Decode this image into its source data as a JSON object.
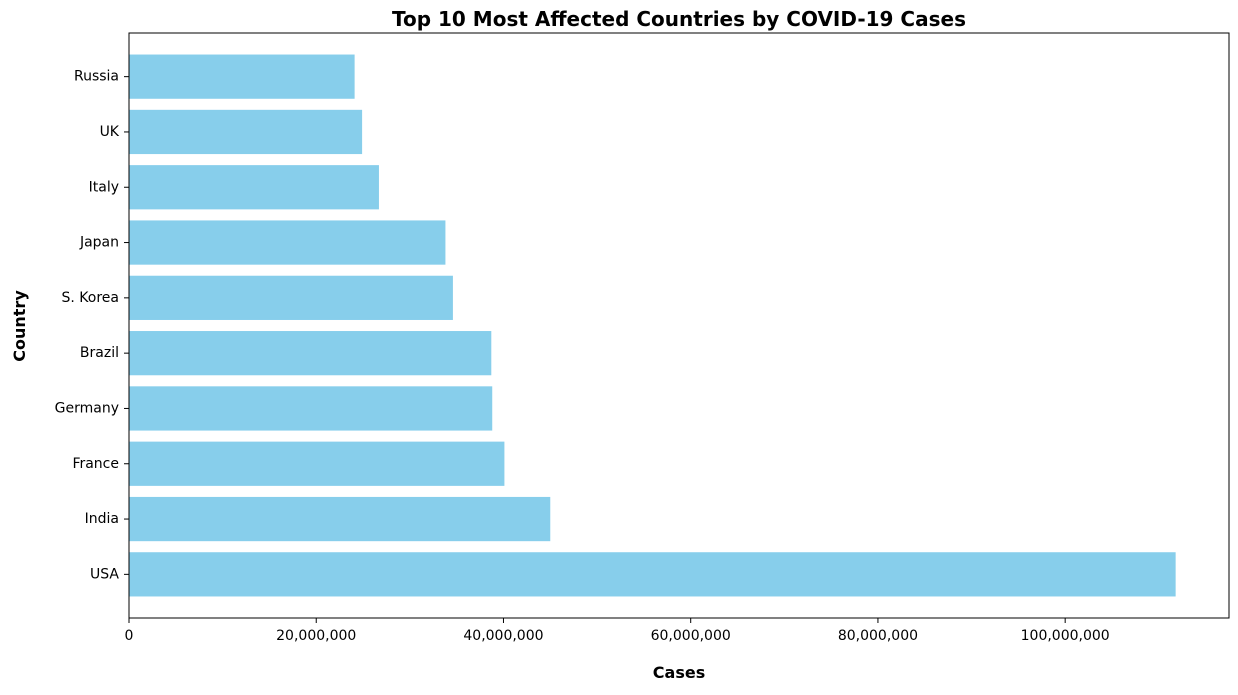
{
  "chart_data": {
    "type": "bar",
    "orientation": "horizontal",
    "title": "Top 10 Most Affected Countries by COVID-19 Cases",
    "xlabel": "Cases",
    "ylabel": "Country",
    "categories": [
      "USA",
      "India",
      "France",
      "Germany",
      "Brazil",
      "S. Korea",
      "Japan",
      "Italy",
      "UK",
      "Russia"
    ],
    "values": [
      111800000,
      45000000,
      40100000,
      38800000,
      38700000,
      34600000,
      33800000,
      26700000,
      24900000,
      24100000
    ],
    "xlim": [
      0,
      117500000
    ],
    "x_ticks": [
      0,
      20000000,
      40000000,
      60000000,
      80000000,
      100000000
    ],
    "x_tick_labels": [
      "0",
      "20,000,000",
      "40,000,000",
      "60,000,000",
      "80,000,000",
      "100,000,000"
    ],
    "grid": false,
    "bar_color": "#87CEEB"
  }
}
